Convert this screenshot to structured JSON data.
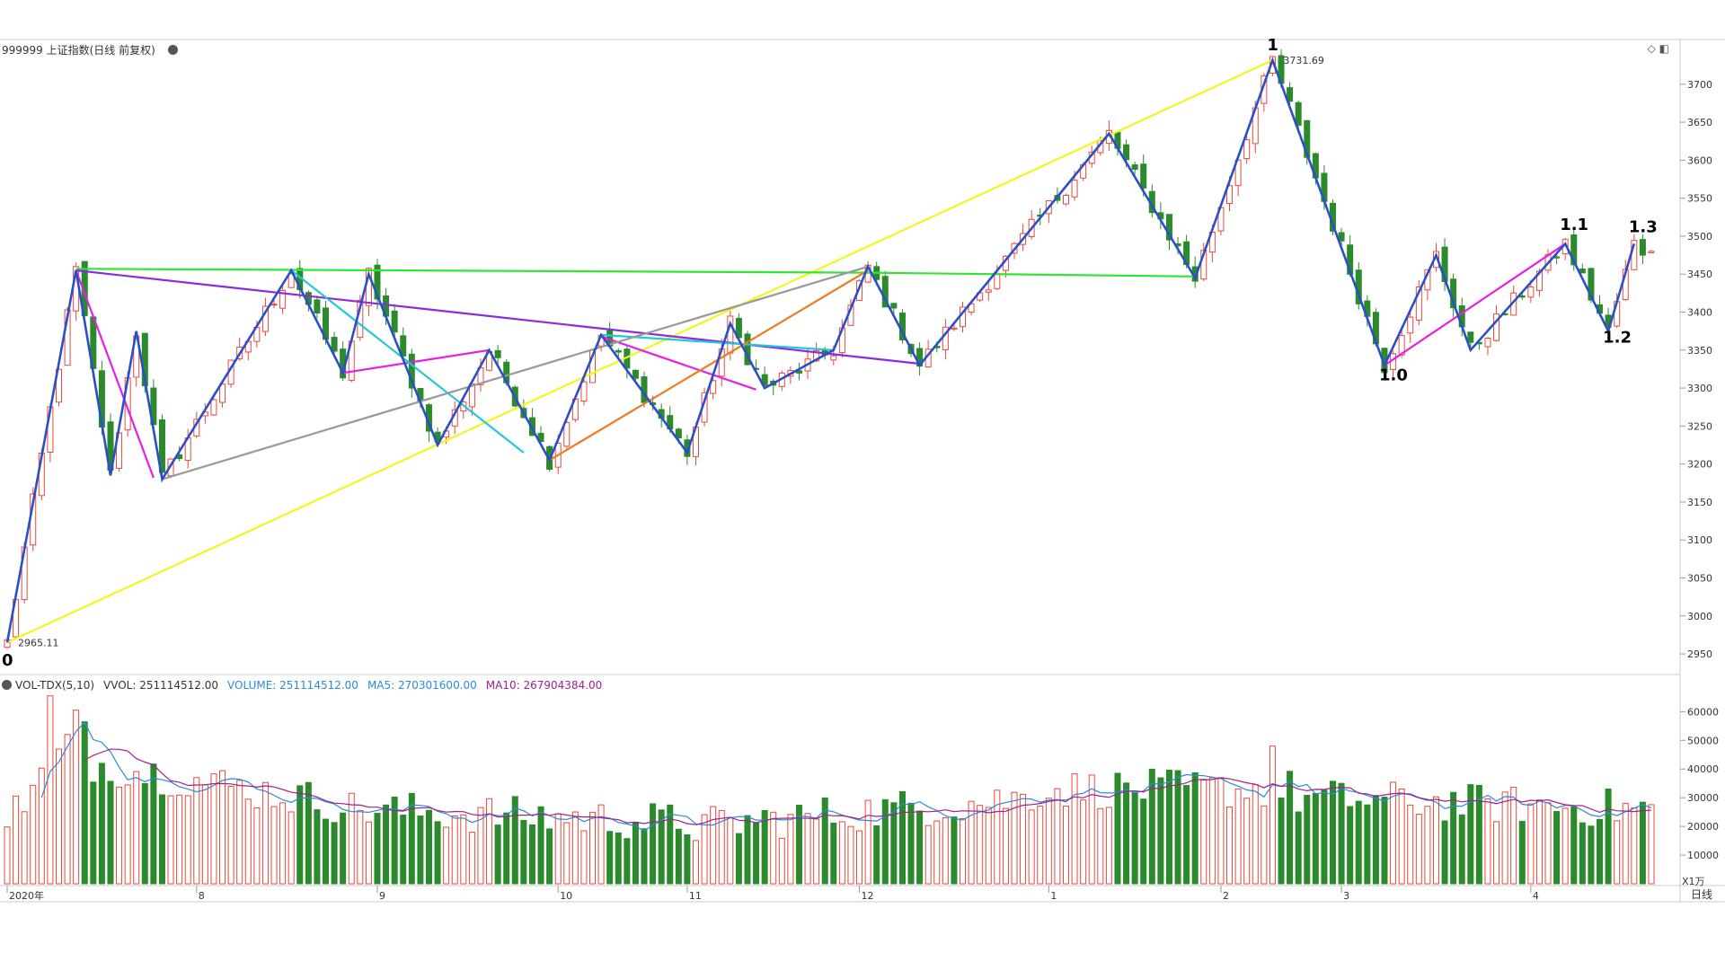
{
  "header": {
    "title": "999999 上证指数(日线 前复权)"
  },
  "vol_header": {
    "name": "VOL-TDX(5,10)",
    "vvol": "VVOL: 251114512.00",
    "volume": "VOLUME: 251114512.00",
    "ma5": "MA5: 270301600.00",
    "ma10": "MA10: 267904384.00"
  },
  "price_scale": [
    "3700",
    "3650",
    "3600",
    "3550",
    "3500",
    "3450",
    "3400",
    "3350",
    "3300",
    "3250",
    "3200",
    "3150",
    "3100",
    "3050",
    "3000",
    "2950"
  ],
  "vol_scale": [
    "60000",
    "50000",
    "40000",
    "30000",
    "20000",
    "10000"
  ],
  "vol_unit": "X1万",
  "period_label": "日线",
  "months": [
    {
      "label": "2020年",
      "idx": 0
    },
    {
      "label": "8",
      "idx": 22
    },
    {
      "label": "9",
      "idx": 43
    },
    {
      "label": "10",
      "idx": 64
    },
    {
      "label": "11",
      "idx": 79
    },
    {
      "label": "12",
      "idx": 99
    },
    {
      "label": "1",
      "idx": 121
    },
    {
      "label": "2",
      "idx": 141
    },
    {
      "label": "3",
      "idx": 155
    },
    {
      "label": "4",
      "idx": 177
    }
  ],
  "annotations": [
    {
      "text": "0",
      "idx": 0,
      "price": 2935
    },
    {
      "text": "1",
      "idx": 147,
      "price": 3745
    },
    {
      "text": "1.0",
      "idx": 160,
      "price": 3310
    },
    {
      "text": "1.1",
      "idx": 181,
      "price": 3508
    },
    {
      "text": "1.2",
      "idx": 186,
      "price": 3360
    },
    {
      "text": "1.3",
      "idx": 189,
      "price": 3505
    }
  ],
  "price_labels": [
    {
      "text": "2965.11",
      "idx": 0,
      "price": 2965.11
    },
    {
      "text": "3731.69",
      "idx": 147,
      "price": 3731.69
    }
  ],
  "colors": {
    "up": "#e8483b",
    "down": "#2b8a2b",
    "wave": "#2b4fc8",
    "yellow": "#f5f51e",
    "green": "#33e633",
    "purple": "#8a2be2",
    "magenta": "#e61ee6",
    "cyan": "#22c8d8",
    "gray": "#999999",
    "orange": "#f07a1e",
    "ma5": "#2b8ad8",
    "ma10": "#a0208c"
  },
  "chart_data": {
    "type": "candlestick",
    "title": "999999 上证指数(日线 前复权)",
    "ylim": [
      2930,
      3740
    ],
    "vol_ylim": [
      0,
      67000
    ],
    "num_bars": 192,
    "wave_pivots": [
      [
        0,
        2965
      ],
      [
        8,
        3455
      ],
      [
        12,
        3185
      ],
      [
        15,
        3375
      ],
      [
        18,
        3180
      ],
      [
        33,
        3455
      ],
      [
        39,
        3320
      ],
      [
        42,
        3450
      ],
      [
        50,
        3225
      ],
      [
        56,
        3350
      ],
      [
        63,
        3205
      ],
      [
        69,
        3370
      ],
      [
        79,
        3215
      ],
      [
        84,
        3385
      ],
      [
        88,
        3300
      ],
      [
        96,
        3350
      ],
      [
        100,
        3460
      ],
      [
        106,
        3330
      ],
      [
        128,
        3635
      ],
      [
        138,
        3445
      ],
      [
        147,
        3731.69
      ],
      [
        160,
        3330
      ],
      [
        166,
        3475
      ],
      [
        170,
        3350
      ],
      [
        181,
        3490
      ],
      [
        186,
        3375
      ],
      [
        189,
        3490
      ]
    ],
    "lines": [
      {
        "color": "yellow",
        "from": [
          0,
          2965
        ],
        "to": [
          147,
          3731.69
        ]
      },
      {
        "color": "green",
        "points": [
          [
            8,
            3457
          ],
          [
            100,
            3452
          ],
          [
            138,
            3447
          ]
        ]
      },
      {
        "color": "purple",
        "from": [
          8,
          3455
        ],
        "to": [
          106,
          3332
        ]
      },
      {
        "color": "magenta",
        "points": [
          [
            8,
            3455
          ],
          [
            17,
            3182
          ]
        ]
      },
      {
        "color": "magenta",
        "points": [
          [
            39,
            3320
          ],
          [
            56,
            3350
          ]
        ]
      },
      {
        "color": "magenta",
        "points": [
          [
            69,
            3368
          ],
          [
            87,
            3298
          ]
        ]
      },
      {
        "color": "magenta",
        "points": [
          [
            160,
            3330
          ],
          [
            181,
            3490
          ]
        ]
      },
      {
        "color": "cyan",
        "from": [
          33,
          3455
        ],
        "to": [
          60,
          3215
        ]
      },
      {
        "color": "cyan",
        "from": [
          69,
          3370
        ],
        "to": [
          96,
          3350
        ]
      },
      {
        "color": "gray",
        "from": [
          18,
          3180
        ],
        "to": [
          100,
          3460
        ]
      },
      {
        "color": "orange",
        "from": [
          63,
          3205
        ],
        "to": [
          100,
          3455
        ]
      }
    ]
  }
}
